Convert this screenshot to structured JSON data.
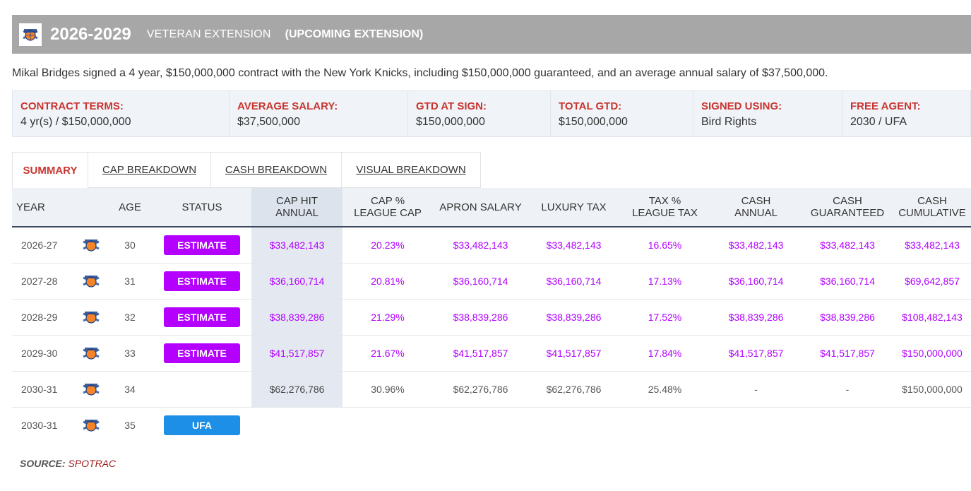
{
  "header": {
    "years": "2026-2029",
    "contract_type": "VETERAN EXTENSION",
    "note": "(UPCOMING EXTENSION)",
    "logo_icon": "knicks-logo-icon"
  },
  "summary": "Mikal Bridges signed a 4 year, $150,000,000 contract with the New York Knicks, including $150,000,000 guaranteed, and an average annual salary of $37,500,000.",
  "terms": [
    {
      "label": "CONTRACT TERMS:",
      "value": "4 yr(s) / $150,000,000"
    },
    {
      "label": "AVERAGE SALARY:",
      "value": "$37,500,000"
    },
    {
      "label": "GTD AT SIGN:",
      "value": "$150,000,000"
    },
    {
      "label": "TOTAL GTD:",
      "value": "$150,000,000"
    },
    {
      "label": "SIGNED USING:",
      "value": "Bird Rights"
    },
    {
      "label": "FREE AGENT:",
      "value": "2030 / UFA"
    }
  ],
  "tabs": [
    {
      "label": "SUMMARY",
      "active": true
    },
    {
      "label": "CAP BREAKDOWN"
    },
    {
      "label": "CASH BREAKDOWN"
    },
    {
      "label": "VISUAL BREAKDOWN"
    }
  ],
  "table": {
    "headers": {
      "year": "YEAR",
      "age": "AGE",
      "status": "STATUS",
      "cap_hit_1": "CAP HIT",
      "cap_hit_2": "ANNUAL",
      "cap_pct_1": "CAP %",
      "cap_pct_2": "LEAGUE CAP",
      "apron": "APRON SALARY",
      "luxury": "LUXURY TAX",
      "tax_pct_1": "TAX %",
      "tax_pct_2": "LEAGUE TAX",
      "cash_annual_1": "CASH",
      "cash_annual_2": "ANNUAL",
      "cash_gtd_1": "CASH",
      "cash_gtd_2": "GUARANTEED",
      "cash_cum_1": "CASH",
      "cash_cum_2": "CUMULATIVE"
    },
    "rows": [
      {
        "year": "2026-27",
        "age": "30",
        "status": "ESTIMATE",
        "cap_hit": "$33,482,143",
        "cap_pct": "20.23%",
        "apron": "$33,482,143",
        "luxury": "$33,482,143",
        "tax_pct": "16.65%",
        "cash_annual": "$33,482,143",
        "cash_gtd": "$33,482,143",
        "cash_cum": "$33,482,143"
      },
      {
        "year": "2027-28",
        "age": "31",
        "status": "ESTIMATE",
        "cap_hit": "$36,160,714",
        "cap_pct": "20.81%",
        "apron": "$36,160,714",
        "luxury": "$36,160,714",
        "tax_pct": "17.13%",
        "cash_annual": "$36,160,714",
        "cash_gtd": "$36,160,714",
        "cash_cum": "$69,642,857"
      },
      {
        "year": "2028-29",
        "age": "32",
        "status": "ESTIMATE",
        "cap_hit": "$38,839,286",
        "cap_pct": "21.29%",
        "apron": "$38,839,286",
        "luxury": "$38,839,286",
        "tax_pct": "17.52%",
        "cash_annual": "$38,839,286",
        "cash_gtd": "$38,839,286",
        "cash_cum": "$108,482,143"
      },
      {
        "year": "2029-30",
        "age": "33",
        "status": "ESTIMATE",
        "cap_hit": "$41,517,857",
        "cap_pct": "21.67%",
        "apron": "$41,517,857",
        "luxury": "$41,517,857",
        "tax_pct": "17.84%",
        "cash_annual": "$41,517,857",
        "cash_gtd": "$41,517,857",
        "cash_cum": "$150,000,000"
      },
      {
        "year": "2030-31",
        "age": "34",
        "status": "",
        "cap_hit": "$62,276,786",
        "cap_pct": "30.96%",
        "apron": "$62,276,786",
        "luxury": "$62,276,786",
        "tax_pct": "25.48%",
        "cash_annual": "-",
        "cash_gtd": "-",
        "cash_cum": "$150,000,000"
      },
      {
        "year": "2030-31",
        "age": "35",
        "status": "UFA"
      }
    ]
  },
  "source": {
    "label": "SOURCE:",
    "value": "SPOTRAC"
  },
  "colors": {
    "accent_red": "#c8352f",
    "estimate_purple": "#b300ff",
    "ufa_blue": "#1e8fe6",
    "header_gray": "#a7a7a7"
  }
}
